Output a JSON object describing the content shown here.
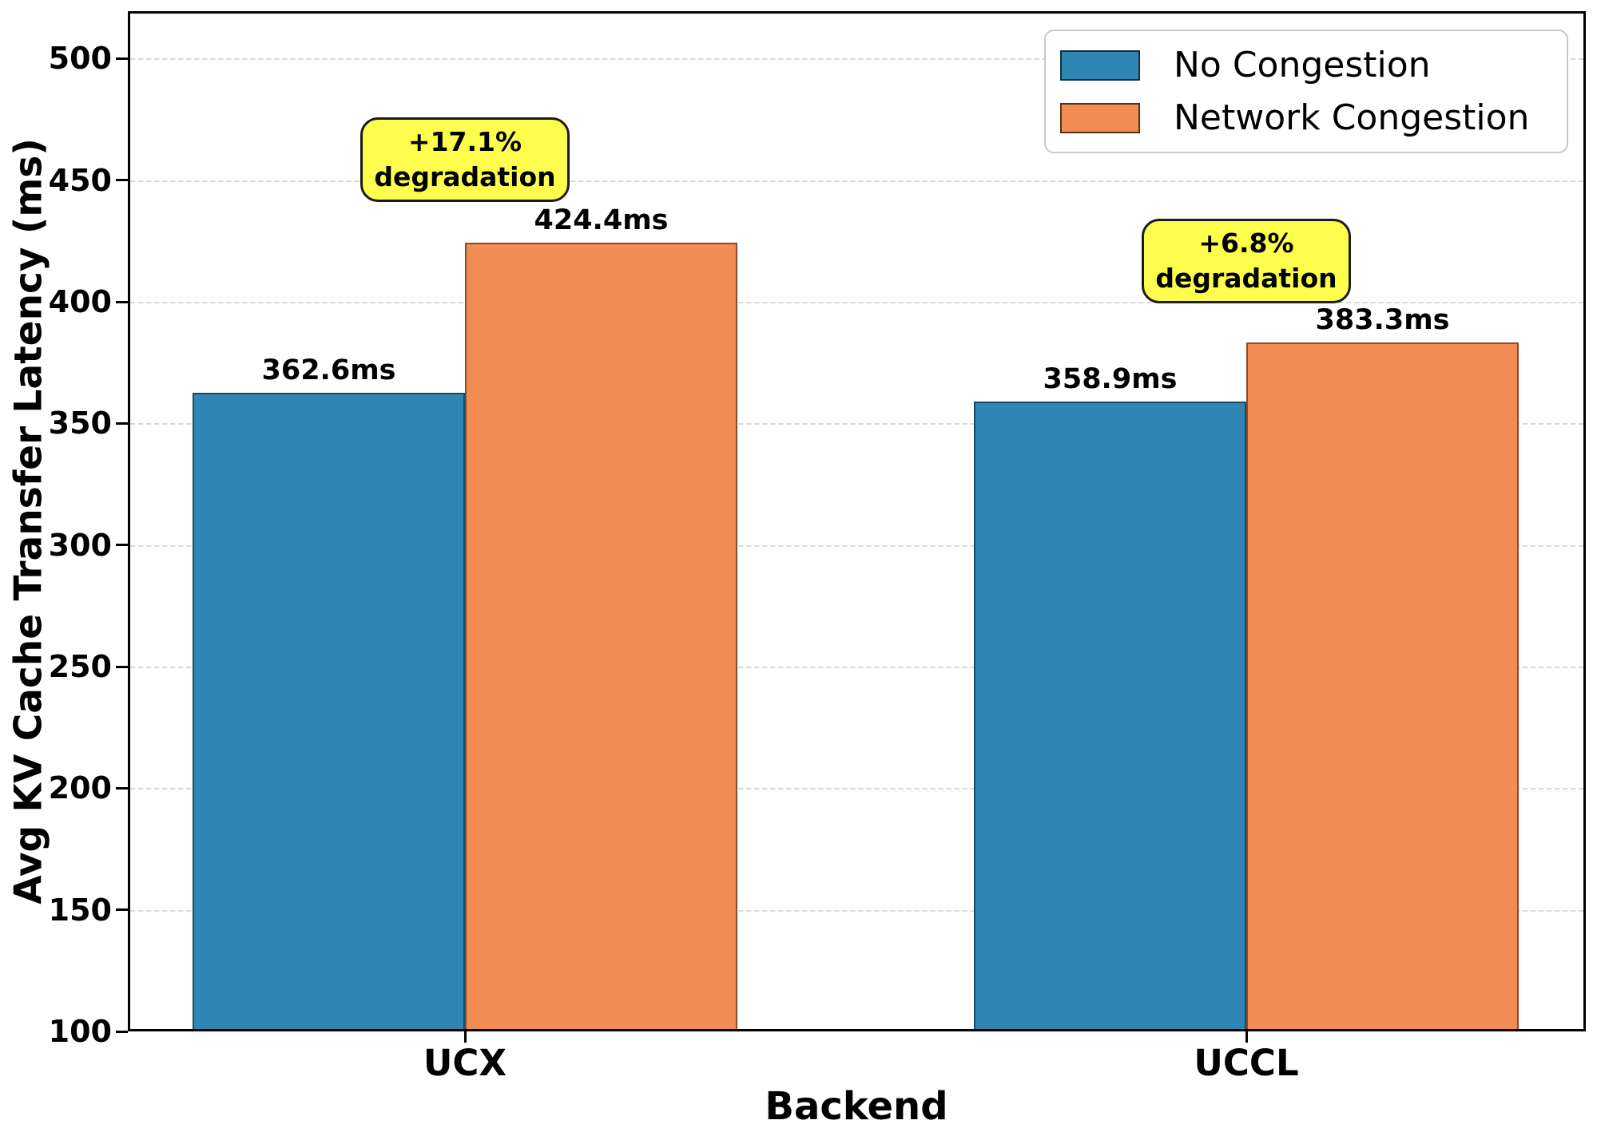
{
  "chart_data": {
    "type": "bar",
    "categories": [
      "UCX",
      "UCCL"
    ],
    "series": [
      {
        "name": "No Congestion",
        "color": "#2f86b4",
        "values": [
          362.6,
          358.9
        ],
        "labels": [
          "362.6ms",
          "358.9ms"
        ]
      },
      {
        "name": "Network Congestion",
        "color": "#f28c52",
        "values": [
          424.4,
          383.3
        ],
        "labels": [
          "424.4ms",
          "383.3ms"
        ]
      }
    ],
    "annotations": [
      {
        "category_index": 0,
        "line1": "+17.1%",
        "line2": "degradation",
        "top_value": 476,
        "bg_color": "#fdfd4d"
      },
      {
        "category_index": 1,
        "line1": "+6.8%",
        "line2": "degradation",
        "top_value": 434,
        "bg_color": "#fdfd4d"
      }
    ],
    "xlabel": "Backend",
    "ylabel": "Avg KV Cache Transfer Latency (ms)",
    "yticks": [
      100,
      150,
      200,
      250,
      300,
      350,
      400,
      450,
      500
    ],
    "ylim": [
      100,
      519.5
    ],
    "value_unit": "ms",
    "grid": "horizontal-dashed",
    "legend_position": "upper-right"
  }
}
